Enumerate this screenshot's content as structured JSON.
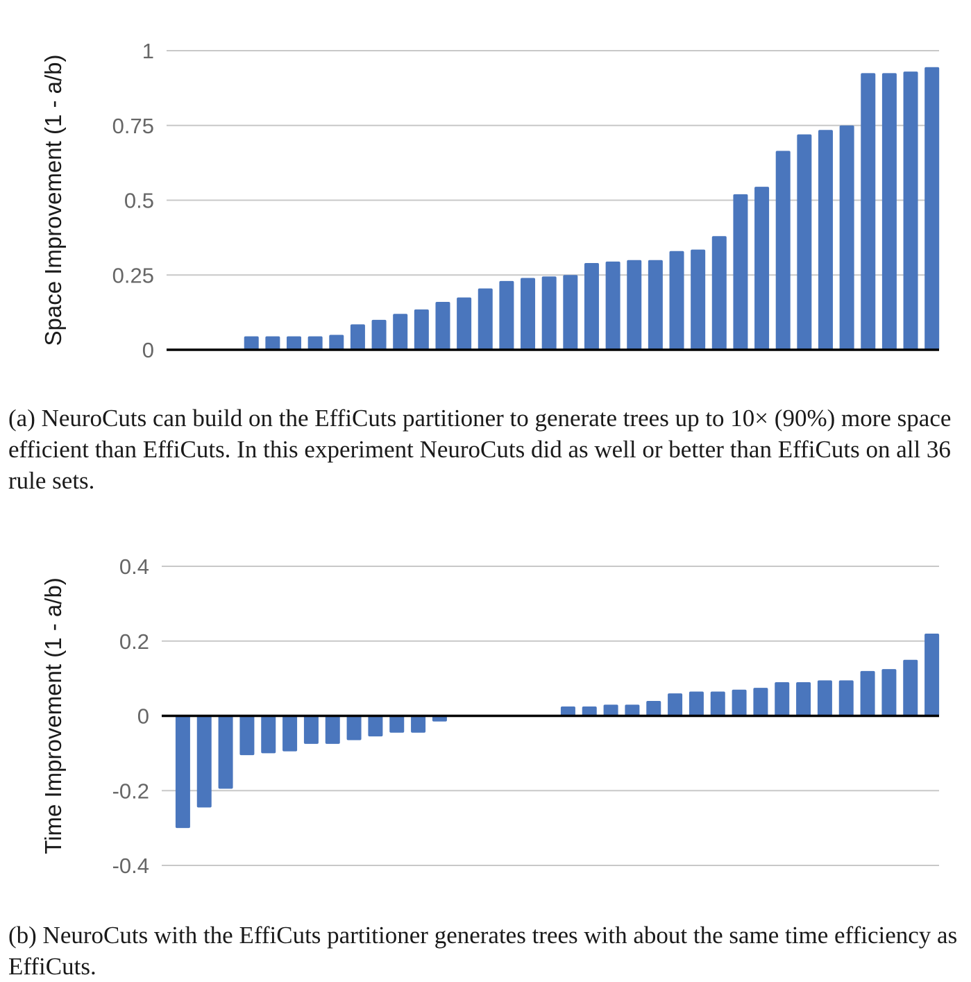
{
  "chart_data": [
    {
      "id": "a",
      "type": "bar",
      "ylabel": "Space Improvement (1 - a/b)",
      "xlabel": "",
      "ylim": [
        0,
        1
      ],
      "yticks": [
        0,
        0.25,
        0.5,
        0.75,
        1
      ],
      "ytick_labels": [
        "0",
        "0.25",
        "0.5",
        "0.75",
        "1"
      ],
      "grid": true,
      "bar_color": "#4a76bd",
      "values": [
        0,
        0,
        0,
        0.045,
        0.045,
        0.045,
        0.045,
        0.05,
        0.085,
        0.1,
        0.12,
        0.135,
        0.16,
        0.175,
        0.205,
        0.23,
        0.24,
        0.245,
        0.25,
        0.29,
        0.295,
        0.3,
        0.3,
        0.33,
        0.335,
        0.38,
        0.52,
        0.545,
        0.665,
        0.72,
        0.735,
        0.75,
        0.925,
        0.925,
        0.93,
        0.945
      ]
    },
    {
      "id": "b",
      "type": "bar",
      "ylabel": "Time Improvement (1 - a/b)",
      "xlabel": "",
      "ylim": [
        -0.4,
        0.4
      ],
      "yticks": [
        -0.4,
        -0.2,
        0,
        0.2,
        0.4
      ],
      "ytick_labels": [
        "-0.4",
        "-0.2",
        "0",
        "0.2",
        "0.4"
      ],
      "grid": true,
      "bar_color": "#4a76bd",
      "values": [
        -0.3,
        -0.245,
        -0.195,
        -0.105,
        -0.1,
        -0.095,
        -0.075,
        -0.075,
        -0.065,
        -0.055,
        -0.045,
        -0.045,
        -0.015,
        0,
        0,
        0,
        0,
        0,
        0.025,
        0.025,
        0.03,
        0.03,
        0.04,
        0.06,
        0.065,
        0.065,
        0.07,
        0.075,
        0.09,
        0.09,
        0.095,
        0.095,
        0.12,
        0.125,
        0.15,
        0.22
      ]
    }
  ],
  "captions": {
    "a": "(a) NeuroCuts can build on the EffiCuts partitioner to generate trees up to 10× (90%) more space efficient than EffiCuts. In this experiment NeuroCuts did as well or better than EffiCuts on all 36 rule sets.",
    "b": "(b) NeuroCuts with the EffiCuts partitioner generates trees with about the same time efficiency as EffiCuts."
  }
}
